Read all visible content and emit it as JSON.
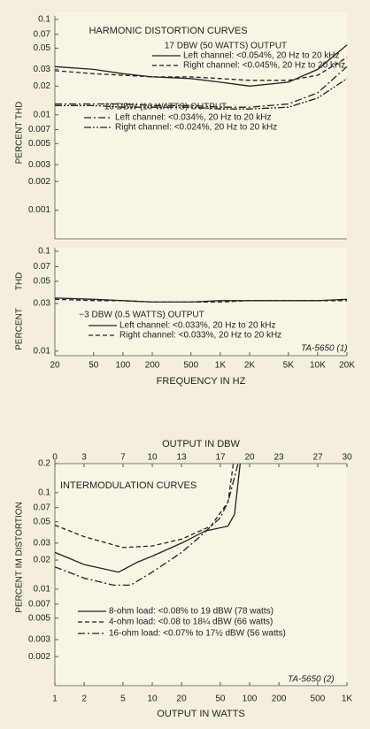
{
  "chart_data": [
    {
      "type": "line",
      "title": "HARMONIC DISTORTION CURVES",
      "ylabel": "PERCENT THD",
      "xscale": "log",
      "yscale": "log",
      "xlim": [
        20,
        20000
      ],
      "ylim": [
        0.0005,
        0.1
      ],
      "yticks": [
        0.1,
        0.07,
        0.05,
        0.03,
        0.02,
        0.01,
        0.007,
        0.005,
        0.003,
        0.002,
        0.001
      ],
      "annotations": [
        "17 DBW (50 WATTS) OUTPUT",
        "10 DBW (10 WATTS) OUTPUT"
      ],
      "x": [
        20,
        50,
        100,
        200,
        500,
        1000,
        2000,
        5000,
        10000,
        20000
      ],
      "series": [
        {
          "name": "Left channel: <0.054%, 20 Hz to 20 kHz",
          "color": "#222222",
          "style": "solid",
          "values": [
            0.032,
            0.03,
            0.027,
            0.025,
            0.024,
            0.022,
            0.02,
            0.022,
            0.03,
            0.054
          ]
        },
        {
          "name": "Right channel: <0.045%, 20 Hz to 20 kHz",
          "color": "#222222",
          "style": "dashed",
          "values": [
            0.029,
            0.027,
            0.026,
            0.025,
            0.025,
            0.024,
            0.023,
            0.023,
            0.026,
            0.04
          ]
        },
        {
          "name": "Left channel: <0.034%, 20 Hz to 20 kHz",
          "color": "#222222",
          "style": "dashdot",
          "values": [
            0.013,
            0.013,
            0.013,
            0.0125,
            0.0125,
            0.012,
            0.012,
            0.013,
            0.017,
            0.032
          ]
        },
        {
          "name": "Right channel: <0.024%, 20 Hz to 20 kHz",
          "color": "#222222",
          "style": "dashdotdot",
          "values": [
            0.0125,
            0.0125,
            0.012,
            0.012,
            0.012,
            0.0115,
            0.0115,
            0.012,
            0.015,
            0.024
          ]
        }
      ]
    },
    {
      "type": "line",
      "ylabel": [
        "THD",
        "PERCENT"
      ],
      "xlabel": "FREQUENCY IN HZ",
      "note": "TA-5650 (1)",
      "xscale": "log",
      "yscale": "log",
      "xlim": [
        20,
        20000
      ],
      "ylim": [
        0.009,
        0.1
      ],
      "yticks": [
        0.1,
        0.07,
        0.05,
        0.03,
        0.01
      ],
      "xticks": [
        20,
        50,
        100,
        200,
        500,
        {
          "value": 1000,
          "label": "1K"
        },
        {
          "value": 2000,
          "label": "2K"
        },
        {
          "value": 5000,
          "label": "5K"
        },
        {
          "value": 10000,
          "label": "10K"
        },
        {
          "value": 20000,
          "label": "20K"
        }
      ],
      "annotations": [
        "−3 DBW (0.5 WATTS) OUTPUT"
      ],
      "x": [
        20,
        50,
        100,
        200,
        500,
        1000,
        2000,
        5000,
        10000,
        20000
      ],
      "series": [
        {
          "name": "Left channel: <0.033%, 20 Hz to 20 kHz",
          "color": "#222222",
          "style": "solid",
          "values": [
            0.034,
            0.033,
            0.032,
            0.031,
            0.031,
            0.032,
            0.032,
            0.032,
            0.032,
            0.033
          ]
        },
        {
          "name": "Right channel: <0.033%, 20 Hz to 20 kHz",
          "color": "#222222",
          "style": "dashed",
          "values": [
            0.033,
            0.032,
            0.032,
            0.031,
            0.031,
            0.031,
            0.032,
            0.032,
            0.032,
            0.032
          ]
        }
      ]
    },
    {
      "type": "line",
      "title": "INTERMODULATION CURVES",
      "ylabel": "PERCENT IM DISTORTION",
      "xlabel": "OUTPUT IN WATTS",
      "x2label": "OUTPUT IN DBW",
      "note": "TA-5650 (2)",
      "xscale": "log",
      "yscale": "log",
      "xlim": [
        1,
        1000
      ],
      "ylim": [
        0.001,
        0.2
      ],
      "x2lim": [
        0,
        30
      ],
      "xticks": [
        1,
        2,
        5,
        10,
        20,
        50,
        100,
        200,
        500,
        {
          "value": 1000,
          "label": "1K"
        }
      ],
      "x2ticks": [
        0,
        3,
        7,
        10,
        13,
        17,
        20,
        23,
        27,
        30
      ],
      "yticks": [
        0.2,
        0.1,
        0.07,
        0.05,
        0.03,
        0.02,
        0.01,
        0.007,
        0.005,
        0.003,
        0.002
      ],
      "series": [
        {
          "name": "8-ohm load: <0.08% to 19 dBW (78 watts)",
          "color": "#222222",
          "style": "solid",
          "x": [
            1,
            2,
            4.5,
            7,
            10,
            20,
            35,
            60,
            70,
            80
          ],
          "values": [
            0.024,
            0.018,
            0.015,
            0.019,
            0.022,
            0.03,
            0.04,
            0.045,
            0.06,
            0.2
          ]
        },
        {
          "name": "4-ohm load: <0.08 to 18¼ dBW (66 watts)",
          "color": "#222222",
          "style": "dashed",
          "x": [
            1,
            2,
            5,
            10,
            20,
            40,
            60,
            68
          ],
          "values": [
            0.046,
            0.035,
            0.027,
            0.028,
            0.033,
            0.045,
            0.08,
            0.2
          ]
        },
        {
          "name": "16-ohm load: <0.07% to 17½ dBW (56 watts)",
          "color": "#222222",
          "style": "dashdot",
          "x": [
            1,
            2,
            4,
            6,
            10,
            20,
            30,
            50,
            60,
            76
          ],
          "values": [
            0.017,
            0.013,
            0.011,
            0.011,
            0.015,
            0.024,
            0.034,
            0.055,
            0.08,
            0.2
          ]
        }
      ]
    }
  ]
}
